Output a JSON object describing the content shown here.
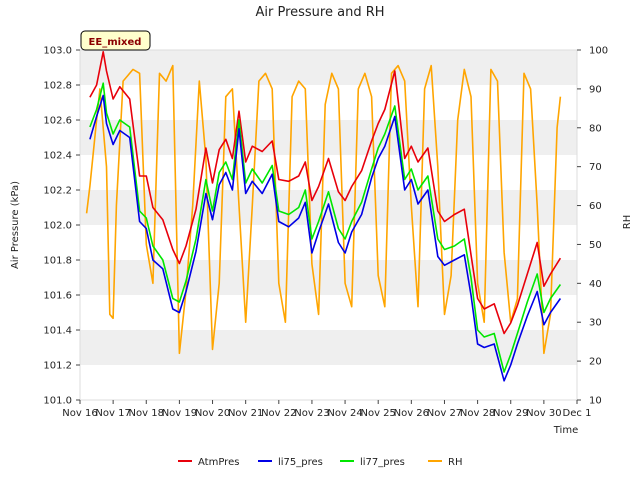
{
  "chart_data": {
    "type": "line",
    "title": "Air Pressure and RH",
    "badge": "EE_mixed",
    "xlabel": "Time",
    "ylabel": "Air Pressure (kPa)",
    "y2label": "RH",
    "xlim": [
      0,
      15
    ],
    "ylim": [
      101.0,
      103.0
    ],
    "y2lim": [
      10,
      100
    ],
    "x_ticks": [
      {
        "x": 0,
        "label": "Nov 16"
      },
      {
        "x": 1,
        "label": "Nov 17"
      },
      {
        "x": 2,
        "label": "Nov 18"
      },
      {
        "x": 3,
        "label": "Nov 19"
      },
      {
        "x": 4,
        "label": "Nov 20"
      },
      {
        "x": 5,
        "label": "Nov 21"
      },
      {
        "x": 6,
        "label": "Nov 22"
      },
      {
        "x": 7,
        "label": "Nov 23"
      },
      {
        "x": 8,
        "label": "Nov 24"
      },
      {
        "x": 9,
        "label": "Nov 25"
      },
      {
        "x": 10,
        "label": "Nov 26"
      },
      {
        "x": 11,
        "label": "Nov 27"
      },
      {
        "x": 12,
        "label": "Nov 28"
      },
      {
        "x": 13,
        "label": "Nov 29"
      },
      {
        "x": 14,
        "label": "Nov 30"
      },
      {
        "x": 15,
        "label": "Dec 1"
      }
    ],
    "y_ticks": [
      "101.0",
      "101.2",
      "101.4",
      "101.6",
      "101.8",
      "102.0",
      "102.2",
      "102.4",
      "102.6",
      "102.8",
      "103.0"
    ],
    "y2_ticks": [
      "10",
      "20",
      "30",
      "40",
      "50",
      "60",
      "70",
      "80",
      "90",
      "100"
    ],
    "grid": true,
    "legend_position": "bottom-center",
    "series": [
      {
        "name": "AtmPres",
        "axis": "left",
        "color": "#e8000b",
        "x": [
          0.3,
          0.5,
          0.7,
          0.8,
          1.0,
          1.2,
          1.5,
          1.8,
          2.0,
          2.2,
          2.5,
          2.8,
          3.0,
          3.2,
          3.5,
          3.8,
          4.0,
          4.2,
          4.4,
          4.6,
          4.8,
          5.0,
          5.2,
          5.5,
          5.8,
          6.0,
          6.3,
          6.6,
          6.8,
          7.0,
          7.2,
          7.5,
          7.8,
          8.0,
          8.2,
          8.5,
          8.8,
          9.0,
          9.2,
          9.5,
          9.8,
          10.0,
          10.2,
          10.5,
          10.8,
          11.0,
          11.3,
          11.6,
          11.8,
          12.0,
          12.2,
          12.5,
          12.8,
          13.0,
          13.2,
          13.5,
          13.8,
          14.0,
          14.2,
          14.5
        ],
        "values": [
          102.73,
          102.8,
          102.99,
          102.88,
          102.72,
          102.79,
          102.72,
          102.28,
          102.28,
          102.1,
          102.03,
          101.86,
          101.78,
          101.88,
          102.09,
          102.44,
          102.24,
          102.43,
          102.49,
          102.38,
          102.65,
          102.36,
          102.45,
          102.42,
          102.48,
          102.26,
          102.25,
          102.28,
          102.36,
          102.14,
          102.22,
          102.38,
          102.19,
          102.14,
          102.22,
          102.31,
          102.48,
          102.58,
          102.66,
          102.88,
          102.38,
          102.45,
          102.36,
          102.44,
          102.08,
          102.02,
          102.06,
          102.09,
          101.83,
          101.58,
          101.52,
          101.55,
          101.38,
          101.44,
          101.54,
          101.72,
          101.9,
          101.65,
          101.72,
          101.81
        ]
      },
      {
        "name": "li75_pres",
        "axis": "left",
        "color": "#0000e6",
        "x": [
          0.3,
          0.5,
          0.7,
          0.8,
          1.0,
          1.2,
          1.5,
          1.8,
          2.0,
          2.2,
          2.5,
          2.8,
          3.0,
          3.2,
          3.5,
          3.8,
          4.0,
          4.2,
          4.4,
          4.6,
          4.8,
          5.0,
          5.2,
          5.5,
          5.8,
          6.0,
          6.3,
          6.6,
          6.8,
          7.0,
          7.2,
          7.5,
          7.8,
          8.0,
          8.2,
          8.5,
          8.8,
          9.0,
          9.2,
          9.5,
          9.8,
          10.0,
          10.2,
          10.5,
          10.8,
          11.0,
          11.3,
          11.6,
          11.8,
          12.0,
          12.2,
          12.5,
          12.8,
          13.0,
          13.2,
          13.5,
          13.8,
          14.0,
          14.2,
          14.5
        ],
        "values": [
          102.49,
          102.62,
          102.74,
          102.58,
          102.46,
          102.54,
          102.5,
          102.02,
          101.98,
          101.8,
          101.75,
          101.52,
          101.5,
          101.62,
          101.85,
          102.18,
          102.03,
          102.23,
          102.3,
          102.2,
          102.55,
          102.18,
          102.25,
          102.18,
          102.29,
          102.02,
          101.99,
          102.04,
          102.13,
          101.84,
          101.96,
          102.12,
          101.9,
          101.84,
          101.96,
          102.06,
          102.27,
          102.38,
          102.45,
          102.62,
          102.2,
          102.26,
          102.12,
          102.2,
          101.82,
          101.77,
          101.8,
          101.83,
          101.6,
          101.32,
          101.3,
          101.32,
          101.11,
          101.2,
          101.32,
          101.48,
          101.62,
          101.43,
          101.5,
          101.58
        ]
      },
      {
        "name": "li77_pres",
        "axis": "left",
        "color": "#00e600",
        "x": [
          0.3,
          0.5,
          0.7,
          0.8,
          1.0,
          1.2,
          1.5,
          1.8,
          2.0,
          2.2,
          2.5,
          2.8,
          3.0,
          3.2,
          3.5,
          3.8,
          4.0,
          4.2,
          4.4,
          4.6,
          4.8,
          5.0,
          5.2,
          5.5,
          5.8,
          6.0,
          6.3,
          6.6,
          6.8,
          7.0,
          7.2,
          7.5,
          7.8,
          8.0,
          8.2,
          8.5,
          8.8,
          9.0,
          9.2,
          9.5,
          9.8,
          10.0,
          10.2,
          10.5,
          10.8,
          11.0,
          11.3,
          11.6,
          11.8,
          12.0,
          12.2,
          12.5,
          12.8,
          13.0,
          13.2,
          13.5,
          13.8,
          14.0,
          14.2,
          14.5
        ],
        "values": [
          102.56,
          102.66,
          102.81,
          102.64,
          102.52,
          102.6,
          102.56,
          102.08,
          102.04,
          101.88,
          101.8,
          101.58,
          101.56,
          101.68,
          101.92,
          102.26,
          102.08,
          102.3,
          102.36,
          102.26,
          102.6,
          102.24,
          102.32,
          102.24,
          102.34,
          102.08,
          102.06,
          102.1,
          102.2,
          101.92,
          102.02,
          102.19,
          101.98,
          101.92,
          102.02,
          102.13,
          102.32,
          102.44,
          102.52,
          102.68,
          102.26,
          102.32,
          102.2,
          102.28,
          101.92,
          101.86,
          101.88,
          101.92,
          101.7,
          101.4,
          101.36,
          101.38,
          101.16,
          101.26,
          101.38,
          101.56,
          101.72,
          101.5,
          101.58,
          101.66
        ]
      },
      {
        "name": "RH",
        "axis": "right",
        "color": "#ffa500",
        "x": [
          0.2,
          0.3,
          0.5,
          0.6,
          0.8,
          0.9,
          1.0,
          1.1,
          1.3,
          1.6,
          1.8,
          2.0,
          2.2,
          2.4,
          2.6,
          2.8,
          3.0,
          3.2,
          3.4,
          3.6,
          3.8,
          4.0,
          4.2,
          4.4,
          4.6,
          4.8,
          5.0,
          5.2,
          5.4,
          5.6,
          5.8,
          6.0,
          6.2,
          6.4,
          6.6,
          6.8,
          7.0,
          7.2,
          7.4,
          7.6,
          7.8,
          8.0,
          8.2,
          8.4,
          8.6,
          8.8,
          9.0,
          9.2,
          9.4,
          9.6,
          9.8,
          10.0,
          10.2,
          10.4,
          10.6,
          10.8,
          11.0,
          11.2,
          11.4,
          11.6,
          11.8,
          12.0,
          12.2,
          12.4,
          12.6,
          12.8,
          13.0,
          13.2,
          13.4,
          13.6,
          13.8,
          14.0,
          14.2,
          14.4,
          14.5
        ],
        "values": [
          58,
          65,
          82,
          90,
          70,
          32,
          31,
          60,
          92,
          95,
          94,
          50,
          40,
          94,
          92,
          96,
          22,
          38,
          60,
          92,
          72,
          23,
          40,
          88,
          90,
          60,
          30,
          60,
          92,
          94,
          90,
          40,
          30,
          88,
          92,
          90,
          45,
          32,
          86,
          94,
          90,
          40,
          34,
          90,
          94,
          88,
          42,
          34,
          94,
          96,
          92,
          60,
          34,
          90,
          96,
          70,
          32,
          42,
          82,
          95,
          88,
          40,
          30,
          95,
          92,
          48,
          30,
          36,
          94,
          90,
          60,
          22,
          32,
          80,
          88
        ]
      }
    ]
  }
}
